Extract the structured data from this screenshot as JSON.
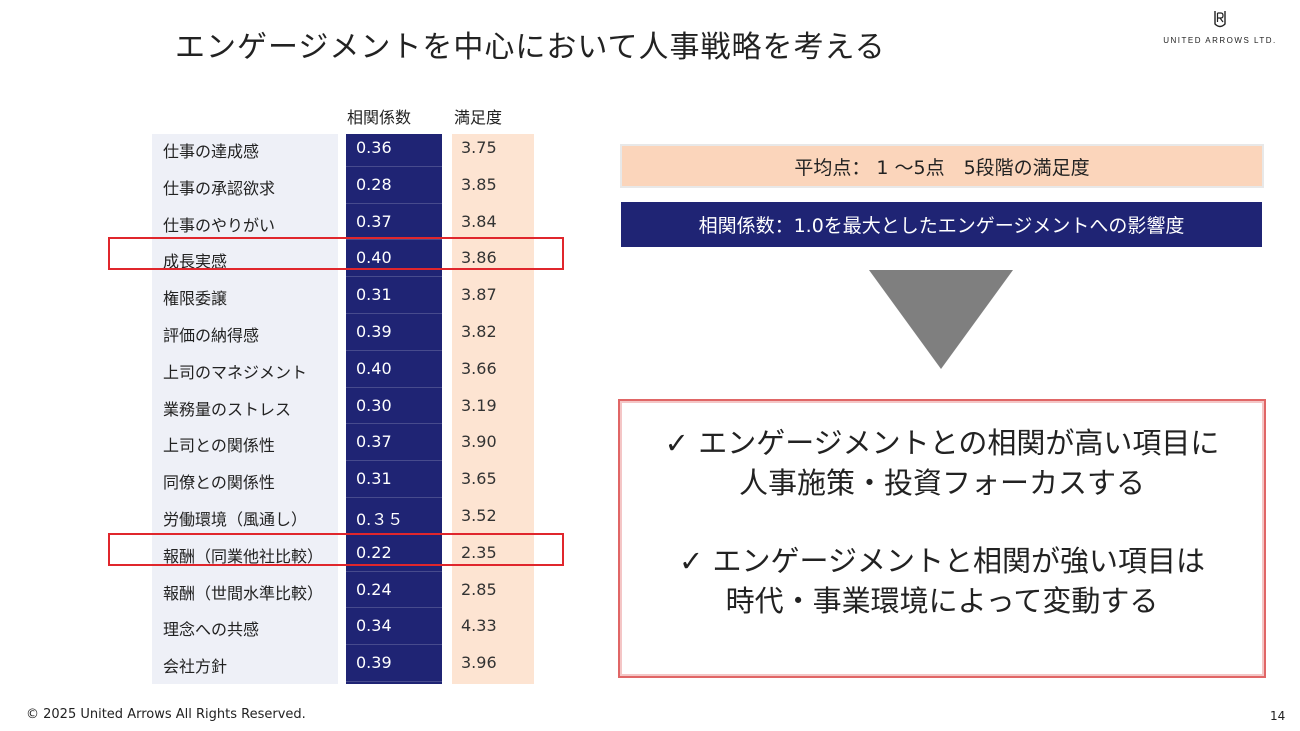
{
  "slide": {
    "title": "エンゲージメントを中心において人事戦略を考える",
    "logo_text": "UNITED ARROWS LTD.",
    "logo_icon": "ua-monogram-icon",
    "footer_copyright": "© 2025 United Arrows All Rights Reserved.",
    "page_number": "14"
  },
  "table": {
    "header_corr": "相関係数",
    "header_sat": "満足度",
    "rows": [
      {
        "label": "仕事の達成感",
        "corr": "0.36",
        "sat": "3.75"
      },
      {
        "label": "仕事の承認欲求",
        "corr": "0.28",
        "sat": "3.85"
      },
      {
        "label": "仕事のやりがい",
        "corr": "0.37",
        "sat": "3.84"
      },
      {
        "label": "成長実感",
        "corr": "0.40",
        "sat": "3.86"
      },
      {
        "label": "権限委譲",
        "corr": "0.31",
        "sat": "3.87"
      },
      {
        "label": "評価の納得感",
        "corr": "0.39",
        "sat": "3.82"
      },
      {
        "label": "上司のマネジメント",
        "corr": "0.40",
        "sat": "3.66"
      },
      {
        "label": "業務量のストレス",
        "corr": "0.30",
        "sat": "3.19"
      },
      {
        "label": "上司との関係性",
        "corr": "0.37",
        "sat": "3.90"
      },
      {
        "label": "同僚との関係性",
        "corr": "0.31",
        "sat": "3.65"
      },
      {
        "label": "労働環境（風通し）",
        "corr": "0.３５",
        "sat": "3.52"
      },
      {
        "label": "報酬（同業他社比較）",
        "corr": "0.22",
        "sat": "2.35"
      },
      {
        "label": "報酬（世間水準比較）",
        "corr": "0.24",
        "sat": "2.85"
      },
      {
        "label": "理念への共感",
        "corr": "0.34",
        "sat": "4.33"
      },
      {
        "label": "会社方針",
        "corr": "0.39",
        "sat": "3.96"
      }
    ],
    "highlighted_rows": [
      "成長実感",
      "報酬（同業他社比較）"
    ],
    "colors": {
      "corr_bg": "#1f2474",
      "sat_bg": "#fde4d2",
      "label_bg": "#eef0f7",
      "highlight": "#e0262c"
    }
  },
  "legend": {
    "avg": "平均点： 1 〜5点　5段階の満足度",
    "corr": "相関係数：1.0を最大としたエンゲージメントへの影響度"
  },
  "conclusion": {
    "line1": "✓ エンゲージメントとの相関が高い項目に",
    "line2": "人事施策・投資フォーカスする",
    "line3": "✓ エンゲージメントと相関が強い項目は",
    "line4": "時代・事業環境によって変動する"
  }
}
